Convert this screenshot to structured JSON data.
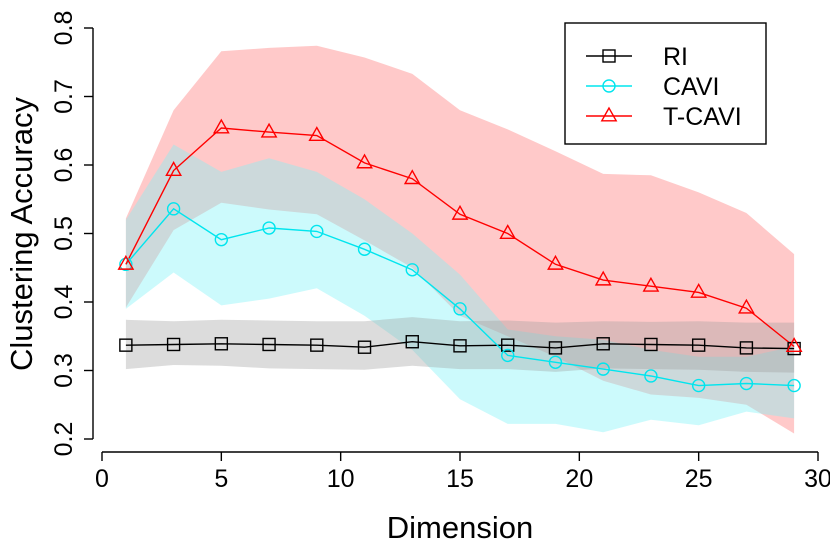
{
  "chart_data": {
    "type": "line",
    "title": "",
    "xlabel": "Dimension",
    "ylabel": "Clustering Accuracy",
    "xlim": [
      0,
      30
    ],
    "ylim": [
      0.2,
      0.8
    ],
    "xticks": [
      0,
      5,
      10,
      15,
      20,
      25,
      30
    ],
    "yticks": [
      0.2,
      0.3,
      0.4,
      0.5,
      0.6,
      0.7,
      0.8
    ],
    "grid": false,
    "legend_position": "top-right",
    "x": [
      1,
      3,
      5,
      7,
      9,
      11,
      13,
      15,
      17,
      19,
      21,
      23,
      25,
      27,
      29
    ],
    "series": [
      {
        "name": "T-CAVI",
        "color": "#ff0000",
        "band_color": "#ff9c9c",
        "band_opacity": 0.55,
        "marker": "triangle",
        "values": [
          0.455,
          0.592,
          0.654,
          0.648,
          0.643,
          0.603,
          0.58,
          0.528,
          0.5,
          0.455,
          0.432,
          0.423,
          0.414,
          0.391,
          0.335
        ],
        "upper": [
          0.522,
          0.68,
          0.766,
          0.771,
          0.774,
          0.757,
          0.733,
          0.68,
          0.652,
          0.62,
          0.587,
          0.585,
          0.56,
          0.53,
          0.47
        ],
        "lower": [
          0.392,
          0.505,
          0.545,
          0.535,
          0.528,
          0.49,
          0.45,
          0.38,
          0.35,
          0.32,
          0.285,
          0.265,
          0.26,
          0.25,
          0.208
        ]
      },
      {
        "name": "CAVI",
        "color": "#00e5ee",
        "band_color": "#80f2f8",
        "band_opacity": 0.4,
        "marker": "circle",
        "values": [
          0.455,
          0.536,
          0.491,
          0.508,
          0.503,
          0.477,
          0.447,
          0.39,
          0.322,
          0.312,
          0.302,
          0.292,
          0.278,
          0.281,
          0.278
        ],
        "upper": [
          0.52,
          0.63,
          0.59,
          0.61,
          0.59,
          0.55,
          0.5,
          0.44,
          0.36,
          0.35,
          0.345,
          0.33,
          0.32,
          0.32,
          0.335
        ],
        "lower": [
          0.39,
          0.443,
          0.395,
          0.405,
          0.42,
          0.38,
          0.33,
          0.258,
          0.222,
          0.222,
          0.21,
          0.228,
          0.22,
          0.24,
          0.23
        ]
      },
      {
        "name": "RI",
        "color": "#000000",
        "band_color": "#9a9a9a",
        "band_opacity": 0.35,
        "marker": "square",
        "values": [
          0.337,
          0.338,
          0.339,
          0.338,
          0.337,
          0.334,
          0.342,
          0.336,
          0.337,
          0.333,
          0.339,
          0.338,
          0.337,
          0.333,
          0.332
        ],
        "upper": [
          0.374,
          0.372,
          0.374,
          0.373,
          0.372,
          0.372,
          0.378,
          0.372,
          0.373,
          0.37,
          0.372,
          0.371,
          0.372,
          0.37,
          0.37
        ],
        "lower": [
          0.302,
          0.308,
          0.307,
          0.303,
          0.302,
          0.301,
          0.307,
          0.302,
          0.302,
          0.298,
          0.303,
          0.302,
          0.301,
          0.298,
          0.297
        ]
      }
    ],
    "legend": [
      "RI",
      "CAVI",
      "T-CAVI"
    ]
  }
}
